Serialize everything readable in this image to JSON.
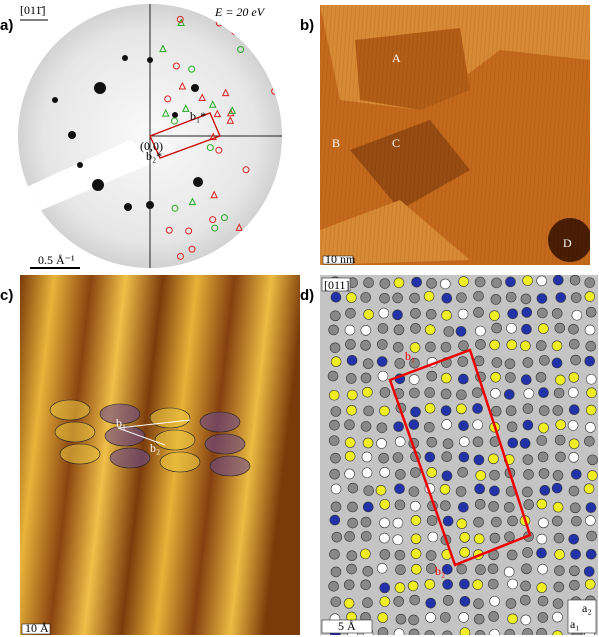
{
  "panels": [
    {
      "label": "a)",
      "direction": "[011̄]",
      "energy": "E = 20 eV",
      "origin": "(0,0)",
      "vectors": [
        "b₁*",
        "b₂*"
      ],
      "scale": "0.5 Å⁻¹"
    },
    {
      "label": "b)",
      "domains": [
        "A",
        "B",
        "C",
        "D"
      ],
      "scale": "10 nm"
    },
    {
      "label": "c)",
      "vectors": [
        "b₁",
        "b₂"
      ],
      "scale": "10 Å"
    },
    {
      "label": "d)",
      "direction": "[011]",
      "vectors": [
        "b₁",
        "b₂"
      ],
      "scale": "5 Å",
      "axes": [
        "a₁",
        "a₂"
      ]
    }
  ]
}
